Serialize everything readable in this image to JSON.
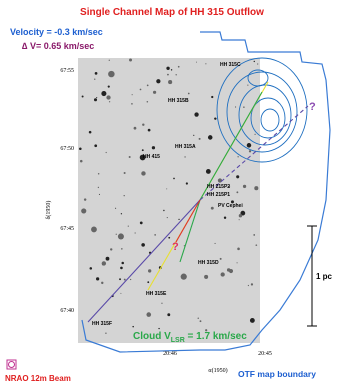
{
  "header": {
    "title": "Single Channel Map of HH 315 Outflow",
    "velocity": "Velocity = -0.3 km/sec",
    "delta_v": "∆ V= 0.65 km/sec"
  },
  "axes": {
    "y_label": "δ(1950)",
    "x_label": "α(1950)",
    "y_ticks": [
      "67:55",
      "67:50",
      "67:45",
      "67:40"
    ],
    "x_ticks": [
      "20:46",
      "20:45"
    ]
  },
  "objects": [
    "HH 315C",
    "HH 315B",
    "HH 415",
    "HH 315A",
    "HH 215P2",
    "HH 215P1",
    "PV Cephei",
    "HH 315D",
    "HH 315E",
    "HH 315F"
  ],
  "annotations": {
    "question_1": "?",
    "question_2": "?",
    "scale": "1 pc",
    "cloud_prefix": "Cloud V",
    "cloud_sub": "LSR",
    "cloud_suffix": " = 1.7 km/sec",
    "beam": "NRAO 12m Beam",
    "boundary": "OTF map boundary"
  }
}
